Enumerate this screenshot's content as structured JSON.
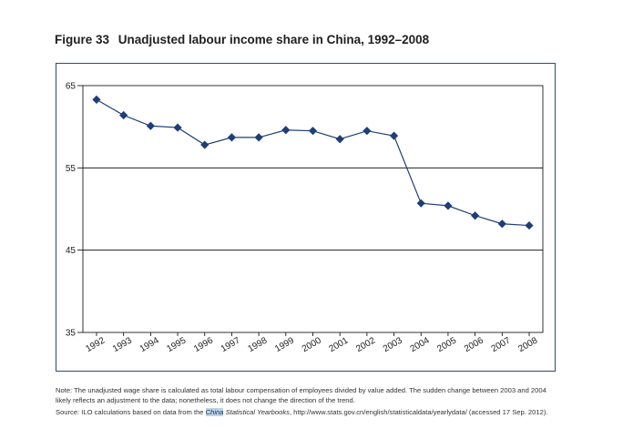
{
  "figure": {
    "number": "Figure 33",
    "title": "Unadjusted labour income share in China, 1992–2008"
  },
  "notes": {
    "note": "Note: The unadjusted wage share is calculated as total labour compensation of employees divided by value added. The sudden change between 2003 and 2004 likely reflects an adjustment to the data; nonetheless, it does not change the direction of the trend.",
    "source_prefix": "Source: ILO calculations based on data from the ",
    "source_highlight": "China",
    "source_italic": " Statistical Yearbooks",
    "source_suffix": ", http://www.stats.gov.cn/english/statisticaldata/yearlydata/ (accessed 17 Sep. 2012)."
  },
  "chart_data": {
    "type": "line",
    "title": "Unadjusted labour income share in China, 1992–2008",
    "xlabel": "",
    "ylabel": "",
    "categories": [
      "1992",
      "1993",
      "1994",
      "1995",
      "1996",
      "1997",
      "1998",
      "1999",
      "2000",
      "2001",
      "2002",
      "2003",
      "2004",
      "2005",
      "2006",
      "2007",
      "2008"
    ],
    "series": [
      {
        "values": [
          63.3,
          61.4,
          60.1,
          59.9,
          57.8,
          58.7,
          58.7,
          59.6,
          59.5,
          58.5,
          59.5,
          58.9,
          50.7,
          50.4,
          49.2,
          48.2,
          48.0
        ],
        "color": "#1f3e78",
        "marker": "diamond"
      }
    ],
    "ylim": [
      35,
      65
    ],
    "yticks": [
      35,
      45,
      55,
      65
    ],
    "grid": true,
    "legend": "none",
    "colors": {
      "line": "#1f3e78",
      "frame": "#2b4a78",
      "grid": "#000000"
    }
  }
}
